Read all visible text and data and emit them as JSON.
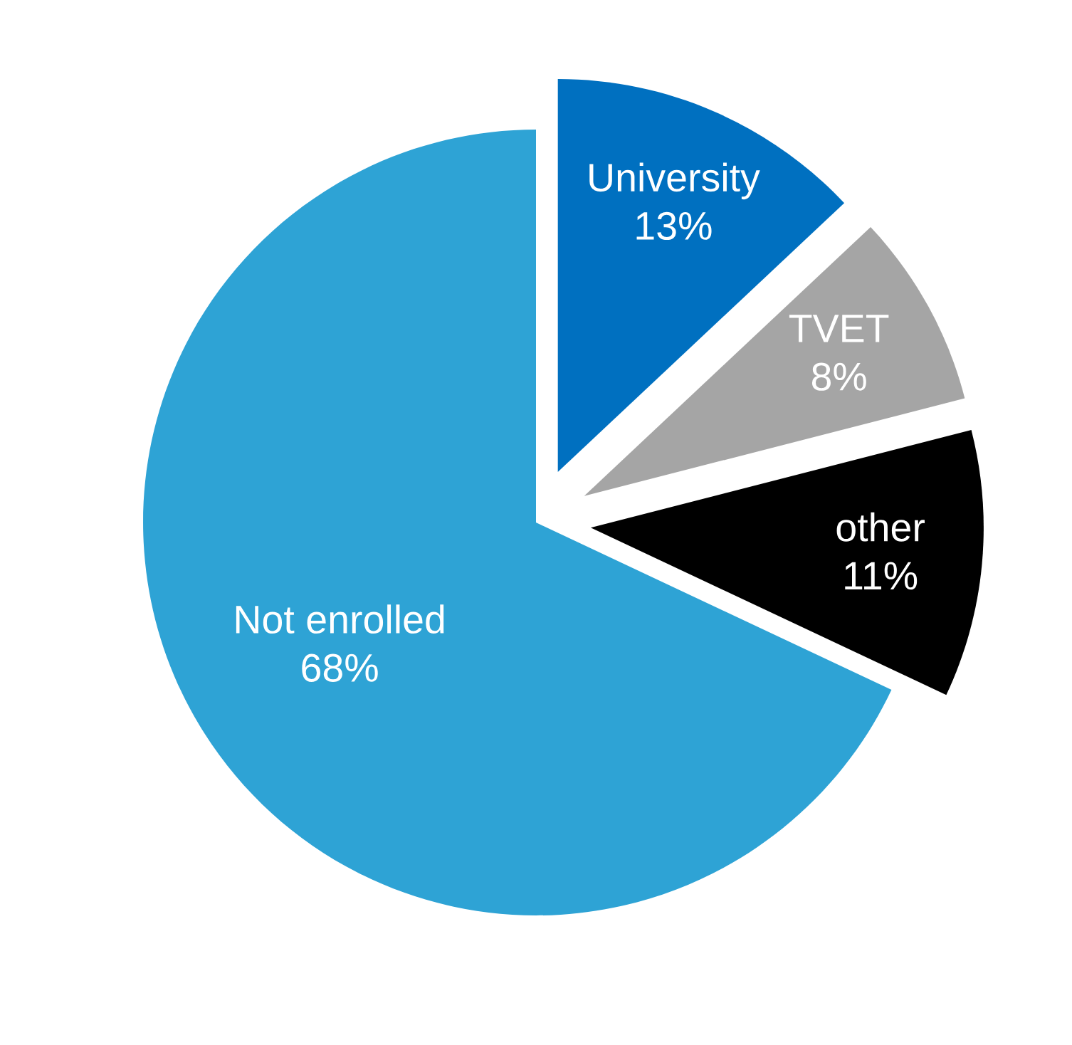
{
  "chart_data": {
    "type": "pie",
    "categories": [
      "University",
      "TVET",
      "other",
      "Not enrolled"
    ],
    "values": [
      13,
      8,
      11,
      68
    ],
    "value_labels": [
      "13%",
      "8%",
      "11%",
      "68%"
    ],
    "colors": [
      "#0070c0",
      "#a5a5a5",
      "#000000",
      "#2ea3d5"
    ]
  }
}
